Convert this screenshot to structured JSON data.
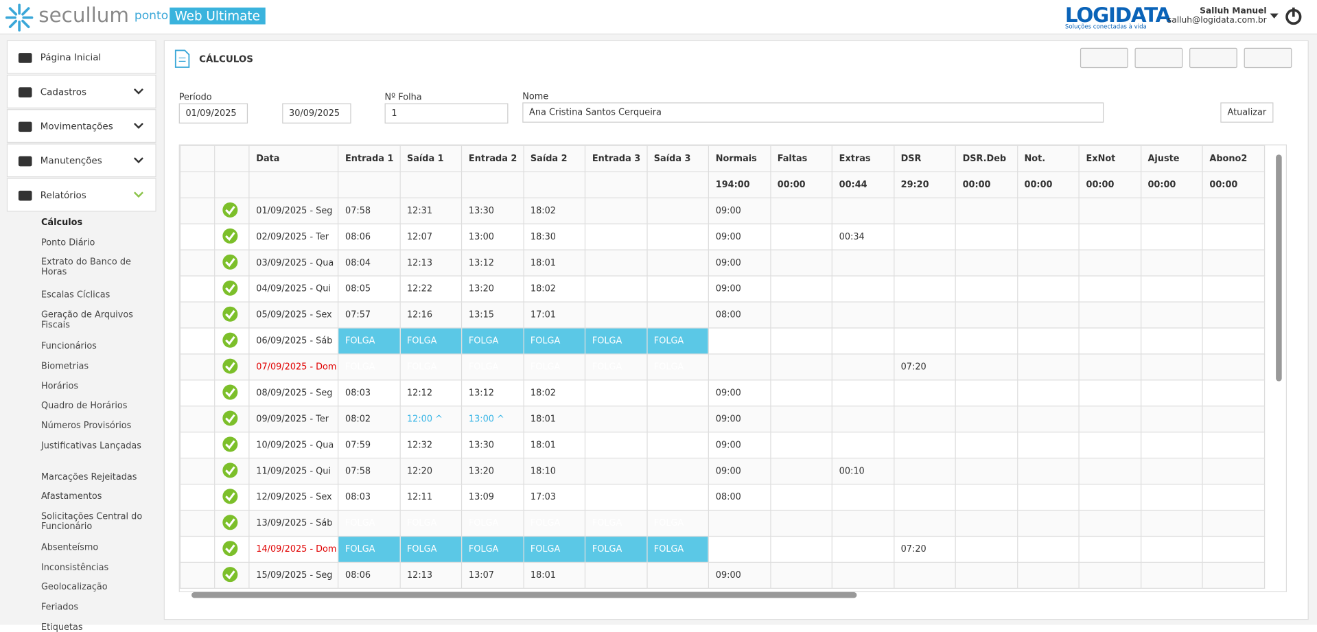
{
  "header": {
    "brand": "secullum",
    "product": "ponto",
    "edition": "Web Ultimate",
    "company": "LOGIDATA",
    "tagline": "Soluções conectadas à vida",
    "user_name": "Salluh Manuel",
    "user_email": "salluh@logidata.com.br"
  },
  "menu": [
    "Página Inicial",
    "Cadastros",
    "Movimentações",
    "Manutenções",
    "Relatórios"
  ],
  "submenu": [
    "Cálculos",
    "Ponto Diário",
    "Extrato do Banco de Horas",
    "Escalas Cíclicas",
    "Geração de Arquivos Fiscais",
    "Funcionários",
    "Biometrias",
    "Horários",
    "Quadro de Horários",
    "Números Provisórios",
    "Justificativas Lançadas",
    "Marcações Rejeitadas",
    "Afastamentos",
    "Solicitações Central do Funcionário",
    "Absenteísmo",
    "Inconsistências",
    "Geolocalização",
    "Feriados",
    "Etiquetas"
  ],
  "page": {
    "title": "CÁLCULOS"
  },
  "filters": {
    "period_label": "Período",
    "start": "01/09/2025",
    "end": "30/09/2025",
    "sheet_label": "Nº Folha",
    "sheet": "1",
    "name_label": "Nome",
    "name": "Ana Cristina Santos Cerqueira",
    "update": "Atualizar"
  },
  "table": {
    "columns": [
      "Data",
      "Entrada 1",
      "Saída 1",
      "Entrada 2",
      "Saída 2",
      "Entrada 3",
      "Saída 3",
      "Normais",
      "Faltas",
      "Extras",
      "DSR",
      "DSR.Deb",
      "Not.",
      "ExNot",
      "Ajuste",
      "Abono2"
    ],
    "totals": [
      null,
      null,
      null,
      null,
      null,
      null,
      null,
      "194:00",
      "00:00",
      "00:44",
      "29:20",
      "00:00",
      "00:00",
      "00:00",
      "00:00",
      "00:00"
    ],
    "rows": [
      [
        "01/09/2025 - Seg",
        "07:58",
        "12:31",
        "13:30",
        "18:02",
        null,
        null,
        "09:00",
        null,
        null,
        null,
        null,
        null,
        null,
        null,
        null
      ],
      [
        "02/09/2025 - Ter",
        "08:06",
        "12:07",
        "13:00",
        "18:30",
        null,
        null,
        "09:00",
        null,
        "00:34",
        null,
        null,
        null,
        null,
        null,
        null
      ],
      [
        "03/09/2025 - Qua",
        "08:04",
        "12:13",
        "13:12",
        "18:01",
        null,
        null,
        "09:00",
        null,
        null,
        null,
        null,
        null,
        null,
        null,
        null
      ],
      [
        "04/09/2025 - Qui",
        "08:05",
        "12:22",
        "13:20",
        "18:02",
        null,
        null,
        "09:00",
        null,
        null,
        null,
        null,
        null,
        null,
        null,
        null
      ],
      [
        "05/09/2025 - Sex",
        "07:57",
        "12:16",
        "13:15",
        "17:01",
        null,
        null,
        "08:00",
        null,
        null,
        null,
        null,
        null,
        null,
        null,
        null
      ],
      [
        "06/09/2025 - Sáb",
        "FOLGA",
        "FOLGA",
        "FOLGA",
        "FOLGA",
        "FOLGA",
        "FOLGA",
        null,
        null,
        null,
        null,
        null,
        null,
        null,
        null,
        null
      ],
      [
        "07/09/2025 - Dom",
        "FOLGA",
        "FOLGA",
        "FOLGA",
        "FOLGA",
        "FOLGA",
        "FOLGA",
        null,
        null,
        null,
        "07:20",
        null,
        null,
        null,
        null,
        null
      ],
      [
        "08/09/2025 - Seg",
        "08:03",
        "12:12",
        "13:12",
        "18:02",
        null,
        null,
        "09:00",
        null,
        null,
        null,
        null,
        null,
        null,
        null,
        null
      ],
      [
        "09/09/2025 - Ter",
        "08:02",
        "12:00 ^",
        "13:00 ^",
        "18:01",
        null,
        null,
        "09:00",
        null,
        null,
        null,
        null,
        null,
        null,
        null,
        null
      ],
      [
        "10/09/2025 - Qua",
        "07:59",
        "12:32",
        "13:30",
        "18:01",
        null,
        null,
        "09:00",
        null,
        null,
        null,
        null,
        null,
        null,
        null,
        null
      ],
      [
        "11/09/2025 - Qui",
        "07:58",
        "12:20",
        "13:20",
        "18:10",
        null,
        null,
        "09:00",
        null,
        "00:10",
        null,
        null,
        null,
        null,
        null,
        null
      ],
      [
        "12/09/2025 - Sex",
        "08:03",
        "12:11",
        "13:09",
        "17:03",
        null,
        null,
        "08:00",
        null,
        null,
        null,
        null,
        null,
        null,
        null,
        null
      ],
      [
        "13/09/2025 - Sáb",
        "FOLGA",
        "FOLGA",
        "FOLGA",
        "FOLGA",
        "FOLGA",
        "FOLGA",
        null,
        null,
        null,
        null,
        null,
        null,
        null,
        null,
        null
      ],
      [
        "14/09/2025 - Dom",
        "FOLGA",
        "FOLGA",
        "FOLGA",
        "FOLGA",
        "FOLGA",
        "FOLGA",
        null,
        null,
        null,
        "07:20",
        null,
        null,
        null,
        null,
        null
      ],
      [
        "15/09/2025 - Seg",
        "08:06",
        "12:13",
        "13:07",
        "18:01",
        null,
        null,
        "09:00",
        null,
        null,
        null,
        null,
        null,
        null,
        null,
        null
      ]
    ]
  }
}
